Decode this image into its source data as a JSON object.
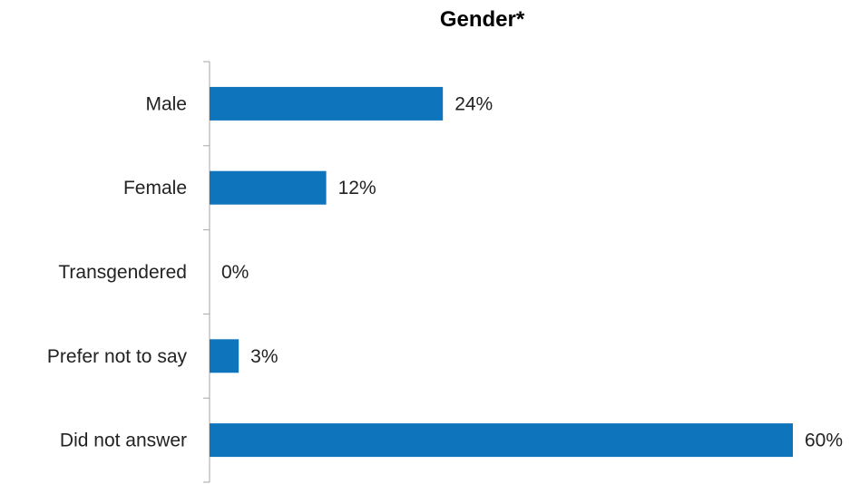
{
  "chart_data": {
    "type": "bar",
    "orientation": "horizontal",
    "title": "Gender*",
    "categories": [
      "Male",
      "Female",
      "Transgendered",
      "Prefer not to say",
      "Did not answer"
    ],
    "values": [
      24,
      12,
      0,
      3,
      60
    ],
    "value_labels": [
      "24%",
      "12%",
      "0%",
      "3%",
      "60%"
    ],
    "bar_color": "#0e75bd",
    "grid": false,
    "legend": "none",
    "xlabel": "",
    "ylabel": ""
  }
}
